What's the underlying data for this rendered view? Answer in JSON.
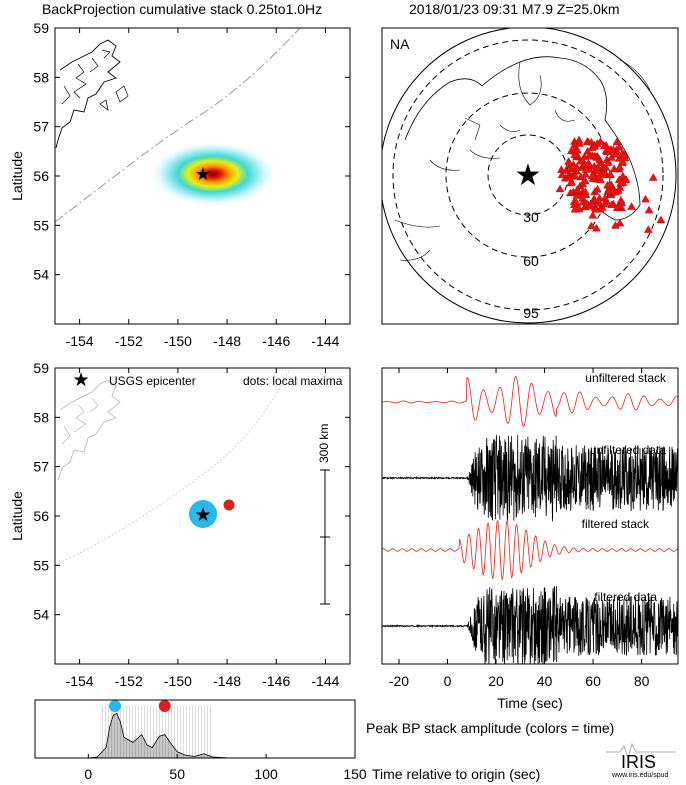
{
  "header": {
    "left_title": "BackProjection cumulative stack 0.25to1.0Hz",
    "right_title": "2018/01/23 09:31  M7.9  Z=25.0km"
  },
  "map_top": {
    "ylabel": "Latitude",
    "x_ticks": [
      "-154",
      "-152",
      "-150",
      "-148",
      "-146",
      "-144"
    ],
    "y_ticks": [
      "59",
      "58",
      "57",
      "56",
      "55",
      "54"
    ]
  },
  "map_bottom": {
    "ylabel": "Latitude",
    "x_ticks": [
      "-154",
      "-152",
      "-150",
      "-148",
      "-146",
      "-144"
    ],
    "y_ticks": [
      "59",
      "58",
      "57",
      "56",
      "55",
      "54"
    ],
    "legend_epicenter": "USGS epicenter",
    "legend_dots": "dots: local maxima",
    "scale_label": "300 km"
  },
  "polar_map": {
    "region": "NA",
    "ring_labels": [
      "30",
      "60",
      "95"
    ]
  },
  "traces": {
    "labels": [
      "unfiltered stack",
      "unfiltered data",
      "filtered stack",
      "filtered data"
    ],
    "x_ticks": [
      "-20",
      "0",
      "20",
      "40",
      "60",
      "80"
    ],
    "xlabel": "Time (sec)"
  },
  "amplitude": {
    "x_ticks": [
      "0",
      "50",
      "100",
      "150"
    ],
    "title": "Peak BP stack amplitude (colors = time)",
    "xlabel": "Time relative to origin (sec)"
  },
  "logo": {
    "name": "IRIS",
    "url": "www.iris.edu/spud"
  },
  "colors": {
    "trace_red": "#e8231e",
    "epicenter_blue": "#1a2be0",
    "station_red": "#ee1111",
    "maxima_cyan": "#29b7ec",
    "maxima_red": "#d8221f"
  },
  "chart_data": [
    {
      "type": "heatmap",
      "xlim": [
        -155,
        -143
      ],
      "ylim": [
        53,
        59
      ],
      "epicenter": {
        "lon": -148.8,
        "lat": 56.05
      },
      "peak": {
        "lon": -148.8,
        "lat": 56.08
      }
    },
    {
      "type": "scatter",
      "xlim": [
        -155,
        -143
      ],
      "ylim": [
        53,
        59
      ],
      "points": [
        {
          "lon": -148.9,
          "lat": 56.05,
          "color": "cyan"
        },
        {
          "lon": -148.1,
          "lat": 56.25,
          "color": "red"
        }
      ]
    },
    {
      "type": "line",
      "xlim": [
        -27,
        95
      ],
      "series_labels": [
        "unfiltered stack",
        "unfiltered data",
        "filtered stack",
        "filtered data"
      ]
    },
    {
      "type": "area",
      "xlim": [
        -30,
        150
      ],
      "x": [
        -30,
        0,
        5,
        10,
        12,
        14,
        16,
        18,
        20,
        25,
        30,
        33,
        36,
        40,
        43,
        46,
        50,
        55,
        60,
        65,
        70,
        80,
        100,
        150
      ],
      "y": [
        0,
        0,
        0.02,
        0.2,
        0.6,
        0.82,
        0.86,
        0.7,
        0.4,
        0.3,
        0.45,
        0.25,
        0.2,
        0.42,
        0.45,
        0.3,
        0.12,
        0.05,
        0.03,
        0.08,
        0.02,
        0,
        0,
        0
      ],
      "markers": [
        {
          "x": 15,
          "color": "cyan"
        },
        {
          "x": 43,
          "color": "red"
        }
      ]
    }
  ]
}
